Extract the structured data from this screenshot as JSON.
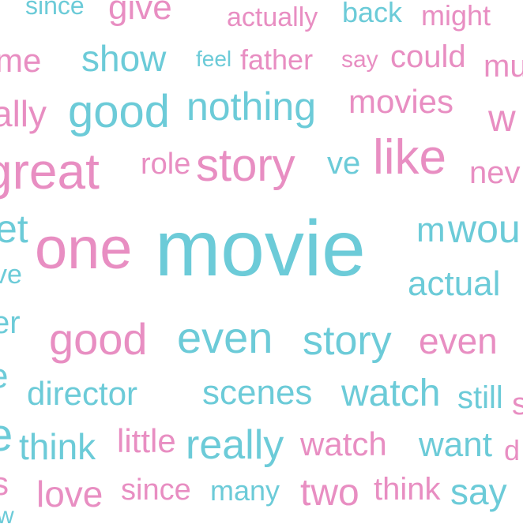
{
  "palette": {
    "pink": "#e88ec2",
    "teal": "#6ccbd8",
    "background": "#ffffff"
  },
  "words": [
    {
      "text": "since",
      "color": "teal"
    },
    {
      "text": "give",
      "color": "pink"
    },
    {
      "text": "actually",
      "color": "pink"
    },
    {
      "text": "back",
      "color": "teal"
    },
    {
      "text": "might",
      "color": "pink"
    },
    {
      "text": "me",
      "color": "pink"
    },
    {
      "text": "show",
      "color": "teal"
    },
    {
      "text": "feel",
      "color": "teal"
    },
    {
      "text": "father",
      "color": "pink"
    },
    {
      "text": "say",
      "color": "pink"
    },
    {
      "text": "could",
      "color": "pink"
    },
    {
      "text": "mu",
      "color": "pink"
    },
    {
      "text": "ally",
      "color": "pink"
    },
    {
      "text": "good",
      "color": "teal"
    },
    {
      "text": "nothing",
      "color": "teal"
    },
    {
      "text": "movies",
      "color": "pink"
    },
    {
      "text": "w",
      "color": "pink"
    },
    {
      "text": "great",
      "color": "pink"
    },
    {
      "text": "role",
      "color": "pink"
    },
    {
      "text": "story",
      "color": "pink"
    },
    {
      "text": "ve",
      "color": "teal"
    },
    {
      "text": "like",
      "color": "pink"
    },
    {
      "text": "nev",
      "color": "pink"
    },
    {
      "text": "et",
      "color": "teal"
    },
    {
      "text": "one",
      "color": "pink"
    },
    {
      "text": "movie",
      "color": "teal"
    },
    {
      "text": "m",
      "color": "teal"
    },
    {
      "text": "wou",
      "color": "teal"
    },
    {
      "text": "ve",
      "color": "teal"
    },
    {
      "text": "actual",
      "color": "teal"
    },
    {
      "text": "er",
      "color": "teal"
    },
    {
      "text": "good",
      "color": "pink"
    },
    {
      "text": "even",
      "color": "teal"
    },
    {
      "text": "story",
      "color": "teal"
    },
    {
      "text": "even",
      "color": "pink"
    },
    {
      "text": "e",
      "color": "teal"
    },
    {
      "text": "director",
      "color": "teal"
    },
    {
      "text": "scenes",
      "color": "teal"
    },
    {
      "text": "watch",
      "color": "teal"
    },
    {
      "text": "still",
      "color": "teal"
    },
    {
      "text": "s",
      "color": "pink"
    },
    {
      "text": "e",
      "color": "teal"
    },
    {
      "text": "think",
      "color": "teal"
    },
    {
      "text": "little",
      "color": "pink"
    },
    {
      "text": "really",
      "color": "teal"
    },
    {
      "text": "watch",
      "color": "pink"
    },
    {
      "text": "want",
      "color": "teal"
    },
    {
      "text": "d",
      "color": "pink"
    },
    {
      "text": "s",
      "color": "pink"
    },
    {
      "text": "love",
      "color": "pink"
    },
    {
      "text": "since",
      "color": "pink"
    },
    {
      "text": "many",
      "color": "teal"
    },
    {
      "text": "two",
      "color": "pink"
    },
    {
      "text": "think",
      "color": "pink"
    },
    {
      "text": "say",
      "color": "teal"
    },
    {
      "text": "w",
      "color": "teal"
    }
  ]
}
